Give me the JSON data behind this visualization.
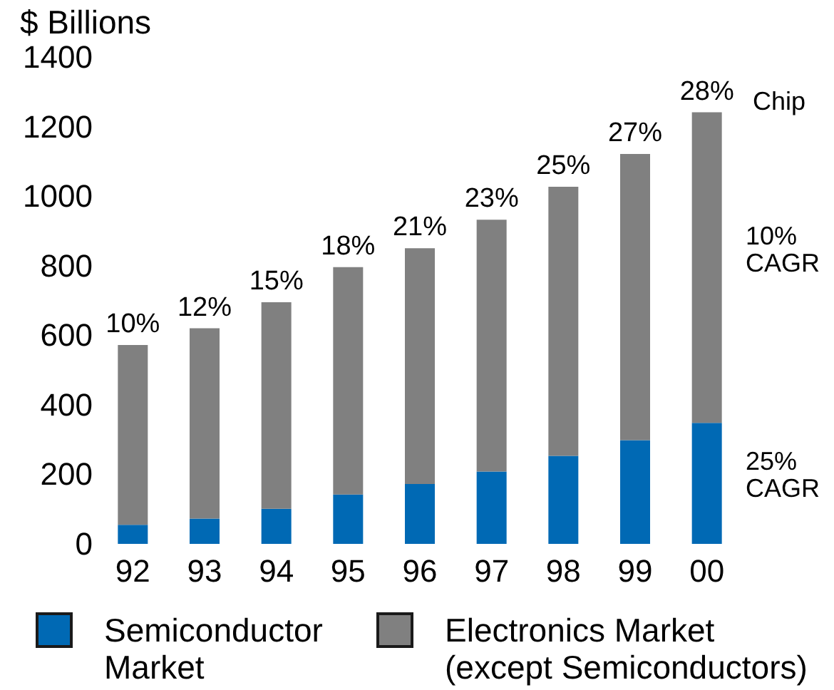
{
  "chart_data": {
    "type": "bar",
    "stacked": true,
    "ylabel": "$ Billions",
    "categories": [
      "92",
      "93",
      "94",
      "95",
      "96",
      "97",
      "98",
      "99",
      "00"
    ],
    "series": [
      {
        "name": "Semiconductor Market",
        "color": "#0069b4",
        "values": [
          55,
          73,
          101,
          142,
          172,
          208,
          253,
          298,
          348
        ]
      },
      {
        "name": "Electronics Market (except Semiconductors)",
        "color": "#808080",
        "values": [
          517,
          547,
          594,
          654,
          678,
          724,
          774,
          823,
          893
        ]
      }
    ],
    "ylim": [
      0,
      1400
    ],
    "yticks": [
      0,
      200,
      400,
      600,
      800,
      1000,
      1200,
      1400
    ],
    "grid": false,
    "legend": "bottom",
    "annotations": [
      {
        "text": "10%",
        "x": "92",
        "y": 572
      },
      {
        "text": "12%",
        "x": "93",
        "y": 620
      },
      {
        "text": "15%",
        "x": "94",
        "y": 695
      },
      {
        "text": "18%",
        "x": "95",
        "y": 796
      },
      {
        "text": "21%",
        "x": "96",
        "y": 850
      },
      {
        "text": "23%",
        "x": "97",
        "y": 932
      },
      {
        "text": "25%",
        "x": "98",
        "y": 1027
      },
      {
        "text": "27%",
        "x": "99",
        "y": 1121
      },
      {
        "text": "28%",
        "x": "00",
        "y": 1241
      },
      "Chip",
      "10% CAGR",
      "25% CAGR"
    ]
  }
}
